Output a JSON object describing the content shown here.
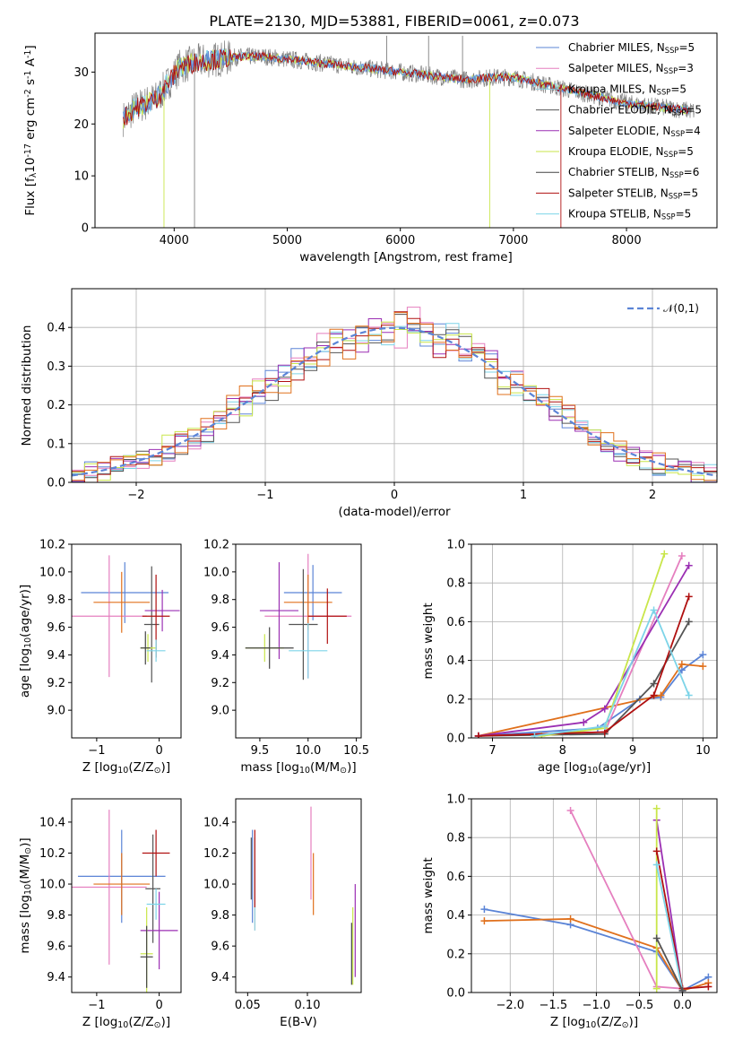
{
  "title": "PLATE=2130, MJD=53881, FIBERID=0061, z=0.073",
  "colors": {
    "Chabrier MILES": "#5b84d6",
    "Salpeter MILES": "#e57fbf",
    "Kroupa MILES": "#8ac7d6",
    "Chabrier ELODIE": "#545454",
    "Salpeter ELODIE": "#9b2fb3",
    "Kroupa ELODIE": "#c9e64a",
    "Chabrier STELIB": "#444444",
    "Salpeter STELIB": "#b01010",
    "Kroupa STELIB": "#7dd4e8",
    "orange": "#e0701c",
    "gray": "#808080"
  },
  "chart_data": [
    {
      "id": "spectrum",
      "type": "line",
      "xlabel": "wavelength [Angstrom, rest frame]",
      "ylabel": "Flux [f$_\\lambda$10$^{-17}$ erg cm$^{-2}$ s$^{-1}$ A$^{-1}$]",
      "xlim": [
        3300,
        8800
      ],
      "ylim": [
        0,
        37.5
      ],
      "xticks": [
        4000,
        5000,
        6000,
        7000,
        8000
      ],
      "yticks": [
        0,
        10,
        20,
        30
      ],
      "legend": [
        "Chabrier MILES, N$_{SSP}$=5",
        "Salpeter MILES, N$_{SSP}$=3",
        "Kroupa MILES, N$_{SSP}$=5",
        "Chabrier ELODIE, N$_{SSP}$=5",
        "Salpeter ELODIE, N$_{SSP}$=4",
        "Kroupa ELODIE, N$_{SSP}$=5",
        "Chabrier STELIB, N$_{SSP}$=6",
        "Salpeter STELIB, N$_{SSP}$=5",
        "Kroupa STELIB, N$_{SSP}$=5"
      ],
      "continuum": {
        "x": [
          3550,
          3650,
          3750,
          3850,
          3950,
          4050,
          4200,
          4400,
          4600,
          4800,
          5000,
          5200,
          5400,
          5600,
          5800,
          6000,
          6200,
          6400,
          6600,
          6800,
          7000,
          7200,
          7400,
          7600,
          7800,
          8000,
          8200,
          8400,
          8600
        ],
        "y": [
          21,
          23,
          24,
          25,
          28,
          31,
          32,
          32.5,
          33,
          33,
          32.5,
          32,
          31.5,
          31,
          30.5,
          30,
          29.5,
          29,
          28.5,
          29,
          29,
          28,
          27,
          26,
          25,
          24,
          23.5,
          23,
          22.5
        ]
      }
    },
    {
      "id": "residuals",
      "type": "line",
      "xlabel": "(data-model)/error",
      "ylabel": "Normed distribution",
      "xlim": [
        -2.5,
        2.5
      ],
      "ylim": [
        0,
        0.5
      ],
      "xticks": [
        -2,
        -1,
        0,
        1,
        2
      ],
      "yticks": [
        0.0,
        0.1,
        0.2,
        0.3,
        0.4
      ],
      "legend": [
        "$\\mathcal{N}(0,1)$"
      ],
      "bins": 50
    },
    {
      "id": "Z-age",
      "type": "scatter",
      "xlabel": "Z [log$_{10}$(Z/Z$_\\odot$)]",
      "ylabel": "age  [log$_{10}$(age/yr)]",
      "xlim": [
        -1.4,
        0.35
      ],
      "ylim": [
        8.8,
        10.2
      ],
      "xticks": [
        -1,
        0
      ],
      "yticks": [
        9.0,
        9.2,
        9.4,
        9.6,
        9.8,
        10.0,
        10.2
      ],
      "points": [
        {
          "model": "Chabrier MILES",
          "x": -0.55,
          "y": 9.85,
          "xerr": 0.7,
          "yerr": 0.22
        },
        {
          "model": "Salpeter MILES",
          "x": -0.8,
          "y": 9.68,
          "xerr": 0.6,
          "yerr": 0.44
        },
        {
          "model": "orange",
          "x": -0.6,
          "y": 9.78,
          "xerr": 0.45,
          "yerr": 0.22
        },
        {
          "model": "Chabrier ELODIE",
          "x": -0.12,
          "y": 9.62,
          "xerr": 0.12,
          "yerr": 0.42
        },
        {
          "model": "Salpeter ELODIE",
          "x": 0.05,
          "y": 9.72,
          "xerr": 0.28,
          "yerr": 0.15
        },
        {
          "model": "Kroupa ELODIE",
          "x": -0.18,
          "y": 9.45,
          "xerr": 0.12,
          "yerr": 0.1
        },
        {
          "model": "Chabrier STELIB",
          "x": -0.22,
          "y": 9.45,
          "xerr": 0.08,
          "yerr": 0.12
        },
        {
          "model": "Salpeter STELIB",
          "x": -0.05,
          "y": 9.68,
          "xerr": 0.22,
          "yerr": 0.3
        },
        {
          "model": "Kroupa STELIB",
          "x": -0.05,
          "y": 9.43,
          "xerr": 0.15,
          "yerr": 0.08
        }
      ]
    },
    {
      "id": "mass-age",
      "type": "scatter",
      "xlabel": "mass [log$_{10}$(M/M$_\\odot$)]",
      "ylabel": "",
      "xlim": [
        9.25,
        10.55
      ],
      "ylim": [
        8.8,
        10.2
      ],
      "xticks": [
        9.5,
        10.0,
        10.5
      ],
      "yticks": [
        9.0,
        9.2,
        9.4,
        9.6,
        9.8,
        10.0,
        10.2
      ],
      "points": [
        {
          "model": "Chabrier MILES",
          "x": 10.05,
          "y": 9.85,
          "xerr": 0.3,
          "yerr": 0.2
        },
        {
          "model": "Salpeter MILES",
          "x": 10.0,
          "y": 9.68,
          "xerr": 0.45,
          "yerr": 0.45
        },
        {
          "model": "orange",
          "x": 10.0,
          "y": 9.78,
          "xerr": 0.25,
          "yerr": 0.2
        },
        {
          "model": "Chabrier ELODIE",
          "x": 9.95,
          "y": 9.62,
          "xerr": 0.15,
          "yerr": 0.4
        },
        {
          "model": "Salpeter ELODIE",
          "x": 9.7,
          "y": 9.72,
          "xerr": 0.2,
          "yerr": 0.35
        },
        {
          "model": "Kroupa ELODIE",
          "x": 9.55,
          "y": 9.45,
          "xerr": 0.2,
          "yerr": 0.1
        },
        {
          "model": "Chabrier STELIB",
          "x": 9.6,
          "y": 9.45,
          "xerr": 0.25,
          "yerr": 0.15
        },
        {
          "model": "Salpeter STELIB",
          "x": 10.2,
          "y": 9.68,
          "xerr": 0.2,
          "yerr": 0.2
        },
        {
          "model": "Kroupa STELIB",
          "x": 10.0,
          "y": 9.43,
          "xerr": 0.2,
          "yerr": 0.2
        }
      ]
    },
    {
      "id": "age-weight",
      "type": "line",
      "xlabel": "age  [log$_{10}$(age/yr)]",
      "ylabel": "mass weight",
      "xlim": [
        6.7,
        10.2
      ],
      "ylim": [
        0,
        1.0
      ],
      "xticks": [
        7,
        8,
        9,
        10
      ],
      "yticks": [
        0.0,
        0.2,
        0.4,
        0.6,
        0.8,
        1.0
      ],
      "series": [
        {
          "model": "Chabrier MILES",
          "x": [
            6.8,
            8.5,
            9.1,
            9.4,
            9.7,
            10.0
          ],
          "y": [
            0.01,
            0.05,
            0.2,
            0.21,
            0.35,
            0.43
          ]
        },
        {
          "model": "orange",
          "x": [
            6.8,
            9.4,
            9.7,
            10.0
          ],
          "y": [
            0.01,
            0.22,
            0.38,
            0.37
          ]
        },
        {
          "model": "Salpeter MILES",
          "x": [
            6.8,
            8.6,
            9.7
          ],
          "y": [
            0.01,
            0.03,
            0.94
          ]
        },
        {
          "model": "Chabrier ELODIE",
          "x": [
            6.8,
            8.6,
            9.3,
            9.8
          ],
          "y": [
            0.01,
            0.02,
            0.28,
            0.6
          ]
        },
        {
          "model": "Salpeter ELODIE",
          "x": [
            6.8,
            8.3,
            8.6,
            9.8
          ],
          "y": [
            0.01,
            0.08,
            0.15,
            0.89
          ]
        },
        {
          "model": "Kroupa ELODIE",
          "x": [
            7.7,
            8.6,
            9.45
          ],
          "y": [
            0.01,
            0.05,
            0.95
          ]
        },
        {
          "model": "Salpeter STELIB",
          "x": [
            6.8,
            8.6,
            9.3,
            9.8
          ],
          "y": [
            0.01,
            0.03,
            0.22,
            0.73
          ]
        },
        {
          "model": "Kroupa STELIB",
          "x": [
            7.6,
            8.6,
            9.3,
            9.8
          ],
          "y": [
            0.01,
            0.06,
            0.66,
            0.22
          ]
        }
      ]
    },
    {
      "id": "Z-mass",
      "type": "scatter",
      "xlabel": "Z [log$_{10}$(Z/Z$_\\odot$)]",
      "ylabel": "mass [log$_{10}$(M/M$_\\odot$)]",
      "xlim": [
        -1.4,
        0.35
      ],
      "ylim": [
        9.3,
        10.55
      ],
      "xticks": [
        -1,
        0
      ],
      "yticks": [
        9.4,
        9.6,
        9.8,
        10.0,
        10.2,
        10.4
      ],
      "points": [
        {
          "model": "Chabrier MILES",
          "x": -0.6,
          "y": 10.05,
          "xerr": 0.7,
          "yerr": 0.3
        },
        {
          "model": "Salpeter MILES",
          "x": -0.8,
          "y": 9.98,
          "xerr": 0.6,
          "yerr": 0.5
        },
        {
          "model": "orange",
          "x": -0.6,
          "y": 10.0,
          "xerr": 0.45,
          "yerr": 0.2
        },
        {
          "model": "Chabrier ELODIE",
          "x": -0.1,
          "y": 9.97,
          "xerr": 0.12,
          "yerr": 0.35
        },
        {
          "model": "Salpeter ELODIE",
          "x": 0.0,
          "y": 9.7,
          "xerr": 0.3,
          "yerr": 0.25
        },
        {
          "model": "Kroupa ELODIE",
          "x": -0.2,
          "y": 9.55,
          "xerr": 0.1,
          "yerr": 0.3
        },
        {
          "model": "Chabrier STELIB",
          "x": -0.2,
          "y": 9.53,
          "xerr": 0.1,
          "yerr": 0.2
        },
        {
          "model": "Salpeter STELIB",
          "x": -0.05,
          "y": 10.2,
          "xerr": 0.22,
          "yerr": 0.15
        },
        {
          "model": "Kroupa STELIB",
          "x": -0.05,
          "y": 9.87,
          "xerr": 0.15,
          "yerr": 0.1
        }
      ]
    },
    {
      "id": "ebv-mass",
      "type": "scatter",
      "xlabel": "E(B-V)",
      "ylabel": "",
      "xlim": [
        0.04,
        0.145
      ],
      "ylim": [
        9.3,
        10.55
      ],
      "xticks": [
        0.05,
        0.1
      ],
      "yticks": [
        9.4,
        9.6,
        9.8,
        10.0,
        10.2,
        10.4
      ],
      "points": [
        {
          "model": "Chabrier MILES",
          "x": 0.054,
          "y": 10.05,
          "yerr": 0.3
        },
        {
          "model": "Salpeter MILES",
          "x": 0.103,
          "y": 10.2,
          "yerr": 0.3
        },
        {
          "model": "orange",
          "x": 0.105,
          "y": 10.0,
          "yerr": 0.2
        },
        {
          "model": "Kroupa MILES",
          "x": 0.056,
          "y": 10.0,
          "yerr": 0.3
        },
        {
          "model": "Salpeter ELODIE",
          "x": 0.14,
          "y": 9.7,
          "yerr": 0.3
        },
        {
          "model": "Kroupa ELODIE",
          "x": 0.138,
          "y": 9.6,
          "yerr": 0.25
        },
        {
          "model": "Chabrier STELIB",
          "x": 0.137,
          "y": 9.55,
          "yerr": 0.2
        },
        {
          "model": "Salpeter STELIB",
          "x": 0.056,
          "y": 10.1,
          "yerr": 0.25
        },
        {
          "model": "Chabrier ELODIE",
          "x": 0.053,
          "y": 10.1,
          "yerr": 0.2
        }
      ]
    },
    {
      "id": "Z-weight",
      "type": "line",
      "xlabel": "Z [log$_{10}$(Z/Z$_\\odot$)]",
      "ylabel": "mass weight",
      "xlim": [
        -2.45,
        0.4
      ],
      "ylim": [
        0,
        1.0
      ],
      "xticks": [
        -2.0,
        -1.5,
        -1.0,
        -0.5,
        0.0
      ],
      "yticks": [
        0.0,
        0.2,
        0.4,
        0.6,
        0.8,
        1.0
      ],
      "series": [
        {
          "model": "Chabrier MILES",
          "x": [
            -2.3,
            -1.3,
            -0.3,
            0.0,
            0.3
          ],
          "y": [
            0.43,
            0.35,
            0.21,
            0.01,
            0.08
          ]
        },
        {
          "model": "orange",
          "x": [
            -2.3,
            -1.3,
            -0.3,
            0.0,
            0.3
          ],
          "y": [
            0.37,
            0.38,
            0.23,
            0.01,
            0.05
          ]
        },
        {
          "model": "Salpeter MILES",
          "x": [
            -1.3,
            -0.3,
            0.0
          ],
          "y": [
            0.94,
            0.03,
            0.02
          ]
        },
        {
          "model": "Salpeter ELODIE",
          "x": [
            -0.3,
            0.0
          ],
          "y": [
            0.89,
            0.01
          ]
        },
        {
          "model": "Kroupa ELODIE",
          "x": [
            -0.3,
            -0.3
          ],
          "y": [
            0.95,
            0.02
          ]
        },
        {
          "model": "Salpeter STELIB",
          "x": [
            -0.3,
            0.0,
            0.3
          ],
          "y": [
            0.73,
            0.02,
            0.03
          ]
        },
        {
          "model": "Kroupa STELIB",
          "x": [
            -0.3,
            0.0
          ],
          "y": [
            0.66,
            0.01
          ]
        },
        {
          "model": "Chabrier ELODIE",
          "x": [
            -0.3,
            0.0
          ],
          "y": [
            0.28,
            0.01
          ]
        }
      ]
    }
  ]
}
